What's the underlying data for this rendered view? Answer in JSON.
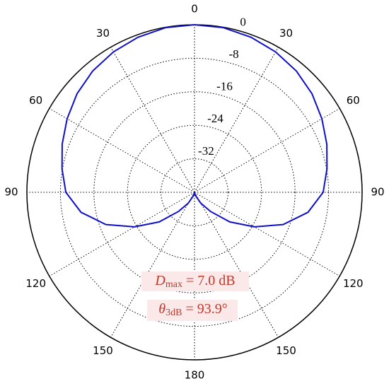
{
  "chart_data": {
    "type": "polar",
    "theta": [
      -180,
      -170,
      -160,
      -150,
      -140,
      -130,
      -120,
      -110,
      -100,
      -90,
      -80,
      -70,
      -60,
      -50,
      -40,
      -30,
      -20,
      -10,
      0,
      10,
      20,
      30,
      40,
      50,
      60,
      70,
      80,
      90,
      100,
      110,
      120,
      130,
      140,
      150,
      160,
      170,
      180
    ],
    "series": [
      {
        "color": "#1010c8",
        "values": [
          -40,
          -39.8,
          -39,
          -37,
          -34,
          -29,
          -23.5,
          -17.5,
          -12.5,
          -9.3,
          -7.9,
          -6.4,
          -4.9,
          -3.4,
          -2.2,
          -1.3,
          -0.6,
          -0.1,
          0,
          -0.1,
          -0.6,
          -1.3,
          -2.2,
          -3.4,
          -4.9,
          -6.4,
          -7.9,
          -9.3,
          -12.5,
          -17.5,
          -23.5,
          -29,
          -34,
          -37,
          -39,
          -39.8,
          -40
        ]
      }
    ],
    "rlim": [
      -40,
      0
    ],
    "rticks": [
      -32,
      -24,
      -16,
      -8,
      0
    ],
    "thetaticks": [
      0,
      30,
      60,
      90,
      120,
      150,
      180,
      {
        "value": -30,
        "label": "30"
      },
      {
        "value": -60,
        "label": "60"
      },
      {
        "value": -90,
        "label": "90"
      },
      {
        "value": -120,
        "label": "120"
      },
      {
        "value": -150,
        "label": "150"
      }
    ],
    "grid": true,
    "annotations": [
      {
        "symbol": "D",
        "subscript": "max",
        "text": "= 7.0 dB"
      },
      {
        "symbol": "θ",
        "subscript": "3dB",
        "text": "= 93.9°"
      }
    ]
  }
}
